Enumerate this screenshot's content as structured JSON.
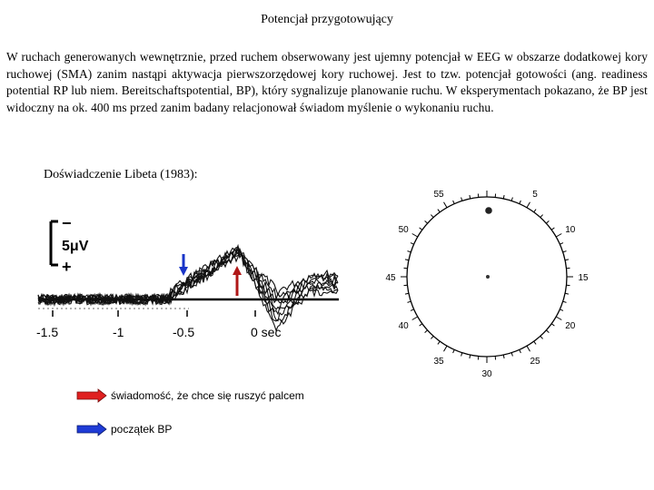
{
  "slide": {
    "title": "Potencjał przygotowujący",
    "paragraph": "W ruchach generowanych wewnętrznie, przed ruchem obserwowany jest ujemny potencjał w EEG w obszarze dodatkowej kory ruchowej (SMA) zanim nastąpi aktywacja pierwszorzędowej kory ruchowej. Jest to tzw. potencjał gotowości (ang. readiness potential RP lub niem. Bereitschaftspotential, BP), który sygnalizuje planowanie ruchu. W eksperymentach pokazano, że BP jest widoczny na ok. 400 ms przed zanim badany relacjonował świadom myślenie o wykonaniu ruchu.",
    "experiment_heading": "Doświadczenie Libeta (1983):"
  },
  "eeg_figure": {
    "polarity_minus": "−",
    "polarity_plus": "+",
    "scale_label": "5μV",
    "tick_labels": [
      "-1.5",
      "-1",
      "-0.5",
      "0 sec"
    ],
    "colors": {
      "awareness_arrow": "#b01818",
      "bp_arrow": "#1a35c8",
      "traces": "#111111"
    }
  },
  "clock_face": {
    "labels": [
      "55",
      "5",
      "50",
      "10",
      "45",
      "15",
      "40",
      "20",
      "35",
      "25",
      "30"
    ]
  },
  "legend": {
    "items": [
      {
        "label": "świadomość, że chce się ruszyć palcem",
        "color": "#e02020"
      },
      {
        "label": "początek BP",
        "color": "#1e3bd6"
      }
    ]
  }
}
